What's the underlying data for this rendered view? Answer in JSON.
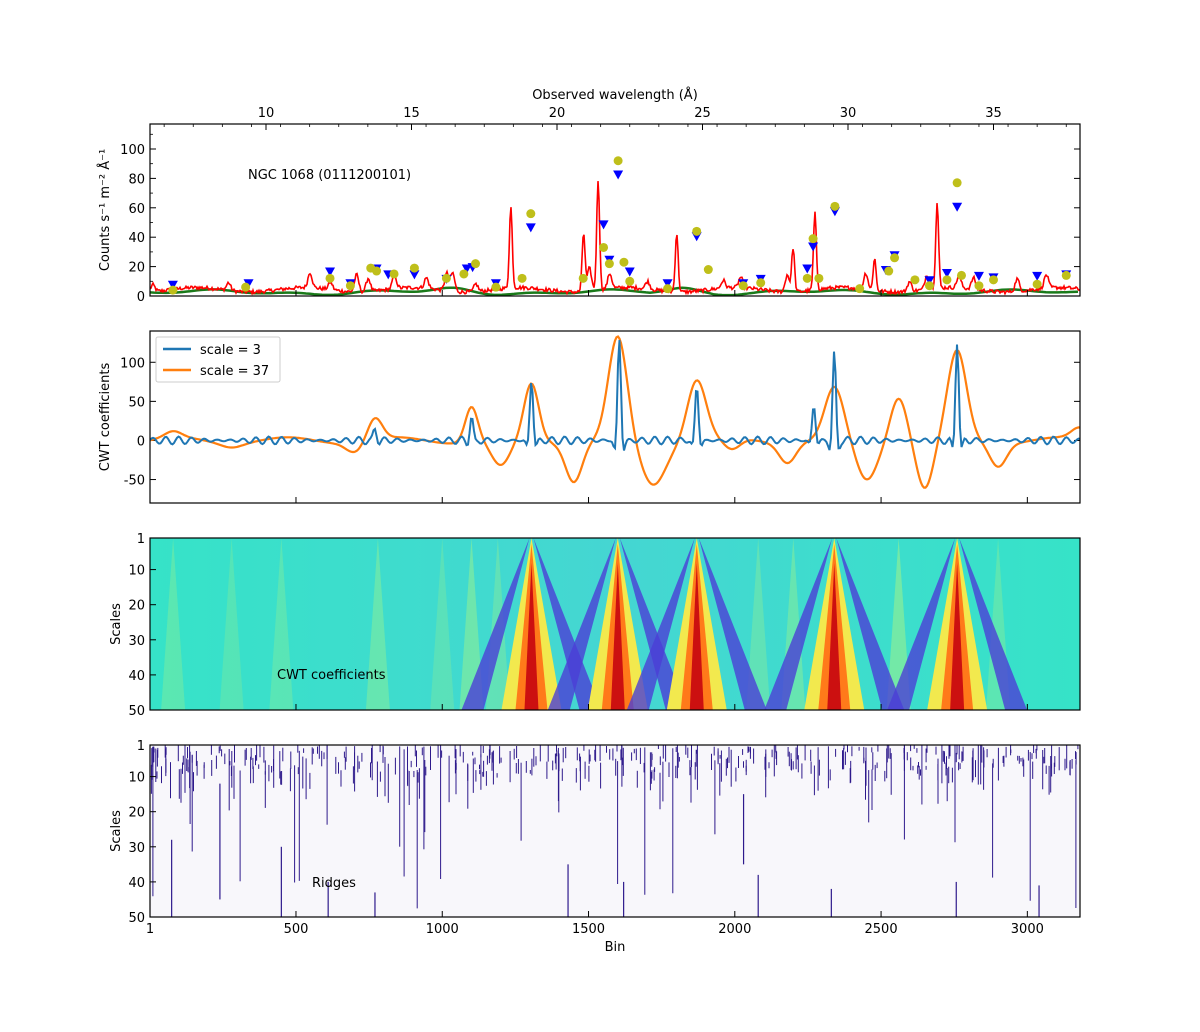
{
  "chart_data": [
    {
      "panel": "spectrum",
      "type": "line",
      "top_xlabel": "Observed wavelength (Å)",
      "top_xticks": [
        10,
        15,
        20,
        25,
        30,
        35
      ],
      "ylabel": "Counts s⁻¹ m⁻² Å⁻¹",
      "ylim": [
        0,
        117
      ],
      "yticks": [
        0,
        20,
        40,
        60,
        80,
        100
      ],
      "annotation": "NGC 1068 (0111200101)",
      "series": [
        {
          "role": "spectrum",
          "color": "#ff0000"
        },
        {
          "role": "continuum",
          "color": "#1a7a1a"
        }
      ],
      "lines": [
        {
          "wl": 19.1,
          "peak": 55,
          "blue": 46,
          "yellow": 56
        },
        {
          "wl": 21.6,
          "peak": 40,
          "blue": 48,
          "yellow": 33
        },
        {
          "wl": 22.1,
          "peak": 75,
          "blue": 82,
          "yellow": 92
        },
        {
          "wl": 24.8,
          "peak": 40,
          "blue": 40,
          "yellow": 44
        },
        {
          "wl": 28.8,
          "peak": 30,
          "blue": 33,
          "yellow": 39
        },
        {
          "wl": 29.55,
          "peak": 52,
          "blue": 57,
          "yellow": 61
        },
        {
          "wl": 31.6,
          "peak": 22,
          "blue": 27,
          "yellow": 26
        },
        {
          "wl": 33.75,
          "peak": 58,
          "blue": 60,
          "yellow": 77
        }
      ],
      "blue_markers": [
        [
          6.8,
          7
        ],
        [
          9.4,
          8
        ],
        [
          12.2,
          16
        ],
        [
          12.9,
          8
        ],
        [
          13.8,
          18
        ],
        [
          14.2,
          14
        ],
        [
          15.1,
          14
        ],
        [
          16.2,
          11
        ],
        [
          16.9,
          18
        ],
        [
          17.1,
          19
        ],
        [
          17.9,
          8
        ],
        [
          21.8,
          24
        ],
        [
          22.5,
          16
        ],
        [
          23.8,
          8
        ],
        [
          26.4,
          8
        ],
        [
          27.0,
          11
        ],
        [
          28.6,
          18
        ],
        [
          31.3,
          17
        ],
        [
          32.8,
          10
        ],
        [
          33.4,
          15
        ],
        [
          34.5,
          13
        ],
        [
          35.0,
          12
        ],
        [
          36.5,
          13
        ],
        [
          37.5,
          14
        ]
      ],
      "yellow_markers": [
        [
          6.8,
          4
        ],
        [
          9.3,
          6
        ],
        [
          12.2,
          12
        ],
        [
          12.9,
          7
        ],
        [
          13.6,
          19
        ],
        [
          13.8,
          17
        ],
        [
          14.4,
          15
        ],
        [
          15.1,
          19
        ],
        [
          16.2,
          12
        ],
        [
          16.8,
          15
        ],
        [
          17.2,
          22
        ],
        [
          17.9,
          6
        ],
        [
          18.8,
          12
        ],
        [
          20.9,
          12
        ],
        [
          21.8,
          22
        ],
        [
          22.3,
          23
        ],
        [
          22.5,
          10
        ],
        [
          23.8,
          5
        ],
        [
          25.2,
          18
        ],
        [
          26.4,
          7
        ],
        [
          27.0,
          9
        ],
        [
          28.6,
          12
        ],
        [
          29.0,
          12
        ],
        [
          30.4,
          5
        ],
        [
          31.4,
          17
        ],
        [
          32.3,
          11
        ],
        [
          32.8,
          7
        ],
        [
          33.4,
          11
        ],
        [
          33.9,
          14
        ],
        [
          34.5,
          7
        ],
        [
          35.0,
          11
        ],
        [
          36.5,
          8
        ],
        [
          37.5,
          14
        ]
      ]
    },
    {
      "panel": "cwt",
      "type": "line",
      "ylabel": "CWT coefficients",
      "ylim": [
        -80,
        140
      ],
      "yticks": [
        -50,
        0,
        50,
        100
      ],
      "legend_placement": "top-left",
      "series": [
        {
          "name": "scale = 3",
          "color": "#1f77b4"
        },
        {
          "name": "scale = 37",
          "color": "#ff7f0e"
        }
      ]
    },
    {
      "panel": "cwt-image",
      "type": "heatmap",
      "ylabel": "Scales",
      "yticks": [
        1,
        10,
        20,
        30,
        40,
        50
      ],
      "annotation": "CWT coefficients",
      "peak_bins": [
        1305,
        1600,
        1870,
        2340,
        2760
      ]
    },
    {
      "panel": "ridges",
      "type": "heatmap",
      "ylabel": "Scales",
      "yticks": [
        1,
        10,
        20,
        30,
        40,
        50
      ],
      "annotation": "Ridges",
      "xlabel": "Bin",
      "xticks": [
        1,
        500,
        1000,
        1500,
        2000,
        2500,
        3000
      ],
      "xlim": [
        1,
        3180
      ],
      "mark_color": "#2e1a8c"
    }
  ]
}
